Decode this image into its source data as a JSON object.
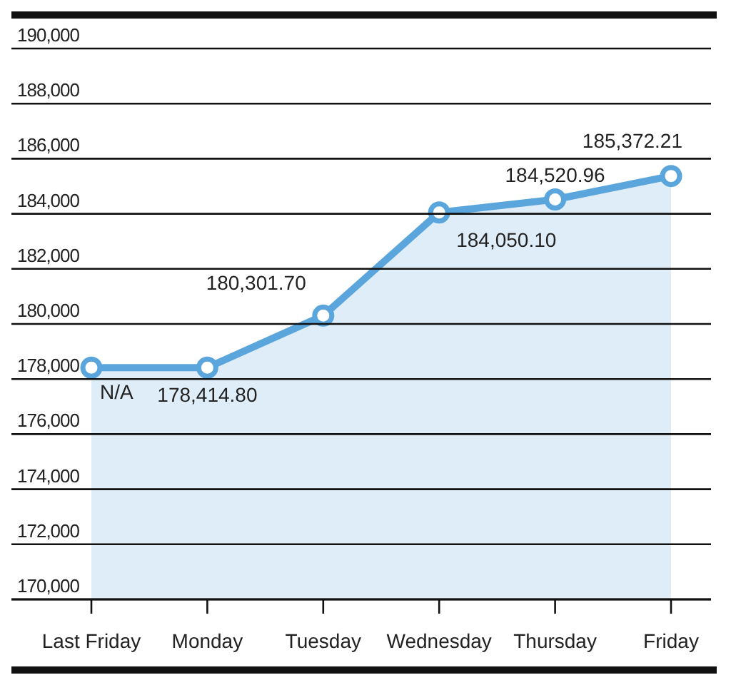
{
  "chart_data": {
    "type": "area",
    "categories": [
      "Last Friday",
      "Monday",
      "Tuesday",
      "Wednesday",
      "Thursday",
      "Friday"
    ],
    "series": [
      {
        "color": "#5aa5dc",
        "values": [
          178414.8,
          178414.8,
          180301.7,
          184050.1,
          184520.96,
          185372.21
        ],
        "value_labels": [
          "N/A",
          "178,414.80",
          "180,301.70",
          "184,050.10",
          "184,520.96",
          "185,372.21"
        ]
      }
    ],
    "ylim": [
      170000,
      190000
    ],
    "yticks": [
      {
        "value": 170000,
        "label": "170,000"
      },
      {
        "value": 172000,
        "label": "172,000"
      },
      {
        "value": 174000,
        "label": "174,000"
      },
      {
        "value": 176000,
        "label": "176,000"
      },
      {
        "value": 178000,
        "label": "178,000"
      },
      {
        "value": 180000,
        "label": "180,000"
      },
      {
        "value": 182000,
        "label": "182,000"
      },
      {
        "value": 184000,
        "label": "184,000"
      },
      {
        "value": 186000,
        "label": "186,000"
      },
      {
        "value": 188000,
        "label": "188,000"
      },
      {
        "value": 190000,
        "label": "190,000"
      }
    ],
    "grid": "y",
    "marker": "circle"
  }
}
